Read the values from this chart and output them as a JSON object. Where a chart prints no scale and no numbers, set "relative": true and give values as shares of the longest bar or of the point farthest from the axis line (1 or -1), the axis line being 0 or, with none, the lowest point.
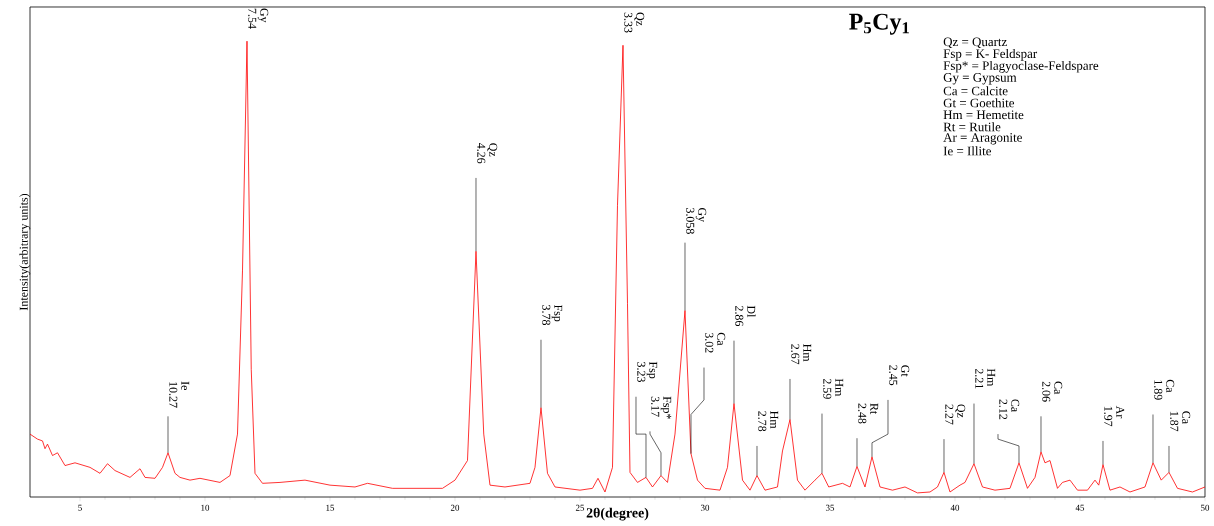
{
  "chart_data": {
    "type": "line",
    "title": "P$_{5}$Cy$_{1}$",
    "xlabel": "2θ(degree)",
    "ylabel": "Intensity(arbitrary units)",
    "relative": true,
    "color": "#ff0000",
    "xlim": [
      3,
      50
    ],
    "xticks": [
      5,
      10,
      15,
      20,
      25,
      30,
      35,
      40,
      45,
      50
    ],
    "x": [
      3.0,
      3.3,
      3.5,
      3.6,
      3.7,
      3.9,
      4.1,
      4.4,
      4.8,
      5.4,
      5.8,
      6.1,
      6.4,
      7.0,
      7.4,
      7.6,
      8.0,
      8.3,
      8.52,
      8.8,
      9.0,
      9.4,
      9.8,
      10.6,
      11.0,
      11.3,
      11.5,
      11.68,
      11.85,
      12.0,
      12.3,
      13.0,
      14.0,
      15.0,
      16.0,
      16.5,
      17.5,
      18.5,
      19.5,
      20.0,
      20.5,
      20.84,
      21.15,
      21.4,
      22.0,
      23.0,
      23.2,
      23.44,
      23.7,
      24.0,
      25.0,
      25.5,
      25.72,
      26.0,
      26.3,
      26.5,
      26.72,
      26.9,
      27.0,
      27.3,
      27.64,
      27.9,
      28.24,
      28.5,
      28.8,
      29.2,
      29.44,
      29.7,
      30.0,
      30.6,
      30.9,
      31.16,
      31.5,
      31.8,
      32.08,
      32.4,
      32.9,
      33.1,
      33.4,
      33.7,
      34.0,
      34.4,
      34.68,
      34.95,
      35.5,
      35.8,
      36.08,
      36.4,
      36.68,
      37.0,
      37.5,
      38.0,
      38.5,
      39.0,
      39.3,
      39.56,
      39.8,
      40.2,
      40.4,
      40.76,
      41.1,
      41.6,
      42.2,
      42.56,
      42.9,
      43.2,
      43.44,
      43.6,
      43.8,
      44.1,
      44.3,
      44.6,
      44.9,
      45.3,
      45.6,
      45.75,
      45.92,
      46.2,
      46.6,
      47.0,
      47.6,
      47.92,
      48.25,
      48.56,
      48.9,
      49.5,
      50.0
    ],
    "values": [
      0.138,
      0.127,
      0.123,
      0.106,
      0.116,
      0.091,
      0.097,
      0.069,
      0.075,
      0.065,
      0.052,
      0.073,
      0.058,
      0.043,
      0.062,
      0.043,
      0.041,
      0.065,
      0.097,
      0.052,
      0.043,
      0.037,
      0.041,
      0.032,
      0.047,
      0.138,
      0.496,
      1.0,
      0.28,
      0.052,
      0.03,
      0.032,
      0.037,
      0.026,
      0.022,
      0.03,
      0.019,
      0.019,
      0.019,
      0.037,
      0.08,
      0.539,
      0.138,
      0.026,
      0.022,
      0.03,
      0.065,
      0.196,
      0.052,
      0.022,
      0.015,
      0.019,
      0.041,
      0.011,
      0.065,
      0.64,
      0.991,
      0.425,
      0.054,
      0.032,
      0.043,
      0.022,
      0.047,
      0.032,
      0.138,
      0.409,
      0.095,
      0.037,
      0.019,
      0.015,
      0.065,
      0.205,
      0.037,
      0.015,
      0.047,
      0.015,
      0.022,
      0.101,
      0.17,
      0.037,
      0.015,
      0.037,
      0.052,
      0.022,
      0.03,
      0.022,
      0.067,
      0.022,
      0.088,
      0.022,
      0.015,
      0.022,
      0.009,
      0.011,
      0.022,
      0.054,
      0.011,
      0.026,
      0.032,
      0.073,
      0.022,
      0.015,
      0.019,
      0.075,
      0.019,
      0.043,
      0.099,
      0.075,
      0.08,
      0.019,
      0.032,
      0.037,
      0.015,
      0.015,
      0.037,
      0.026,
      0.071,
      0.015,
      0.022,
      0.011,
      0.022,
      0.075,
      0.037,
      0.054,
      0.019,
      0.011,
      0.022
    ],
    "annotations": [
      {
        "text": "Ie 10.27",
        "x": 8.52,
        "y": 0.097
      },
      {
        "text": "Gy 7.54",
        "x": 11.68,
        "y": 1.0
      },
      {
        "text": "Qz 4.26",
        "x": 20.84,
        "y": 0.539
      },
      {
        "text": "Fsp 3.78",
        "x": 23.44,
        "y": 0.196
      },
      {
        "text": "Qz 3.33",
        "x": 26.72,
        "y": 0.991
      },
      {
        "text": "Fsp 3.23",
        "x": 27.64,
        "y": 0.043
      },
      {
        "text": "Fsp* 3.17",
        "x": 28.24,
        "y": 0.047
      },
      {
        "text": "Gy 3.058",
        "x": 29.2,
        "y": 0.409
      },
      {
        "text": "Ca 3.02",
        "x": 29.44,
        "y": 0.095
      },
      {
        "text": "Dl 2.86",
        "x": 31.16,
        "y": 0.205
      },
      {
        "text": "Hm 2.78",
        "x": 32.08,
        "y": 0.047
      },
      {
        "text": "Hm 2.67",
        "x": 33.4,
        "y": 0.17
      },
      {
        "text": "Hm 2.59",
        "x": 34.68,
        "y": 0.052
      },
      {
        "text": "Rt 2.48",
        "x": 36.08,
        "y": 0.067
      },
      {
        "text": "Gt 2.45",
        "x": 36.68,
        "y": 0.088
      },
      {
        "text": "Qz 2.27",
        "x": 39.56,
        "y": 0.054
      },
      {
        "text": "Hm 2.21",
        "x": 40.76,
        "y": 0.073
      },
      {
        "text": "Ca 2.12",
        "x": 42.56,
        "y": 0.075
      },
      {
        "text": "Ca 2.06",
        "x": 43.44,
        "y": 0.099
      },
      {
        "text": "Ar 1.97",
        "x": 45.92,
        "y": 0.071
      },
      {
        "text": "Ca 1.89",
        "x": 47.92,
        "y": 0.075
      },
      {
        "text": "Ca 1.87",
        "x": 48.56,
        "y": 0.054
      },
      "Qz = Quartz",
      "Fsp = K- Feldspar",
      "Fsp* = Plagyoclase-Feldspare",
      "Gy = Gypsum",
      "Ca = Calcite",
      "Gt = Goethite",
      "Hm = Hemetite",
      "Rt = Rutile",
      "Ar = Aragonite",
      "Ie = Illite"
    ]
  }
}
